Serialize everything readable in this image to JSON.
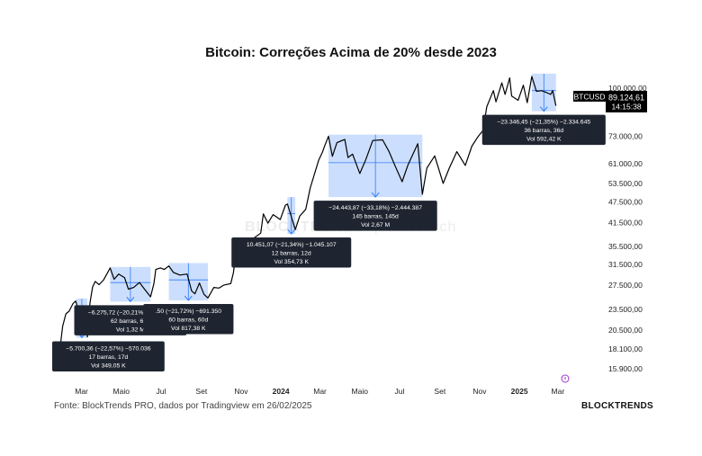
{
  "chart_data": {
    "type": "line",
    "title": "Bitcoin: Correções Acima de 20% desde 2023",
    "symbol": "BTCUSD",
    "last_price": "89.124,61",
    "countdown": "14:15:38",
    "y_scale": "log",
    "ylim": [
      15000,
      118000
    ],
    "y_ticks": [
      "100.000,00",
      "73.000,00",
      "61.000,00",
      "53.500,00",
      "47.500,00",
      "41.500,00",
      "35.500,00",
      "31.500,00",
      "27.500,00",
      "23.500,00",
      "20.500,00",
      "18.100,00",
      "15.900,00"
    ],
    "y_tick_values": [
      100000,
      73000,
      61000,
      53500,
      47500,
      41500,
      35500,
      31500,
      27500,
      23500,
      20500,
      18100,
      15900
    ],
    "x_range": [
      "2023-01-15",
      "2025-03-15"
    ],
    "x_ticks": [
      {
        "label": "Mar",
        "date": "2023-03-01"
      },
      {
        "label": "Maio",
        "date": "2023-05-01"
      },
      {
        "label": "Jul",
        "date": "2023-07-01"
      },
      {
        "label": "Set",
        "date": "2023-09-01"
      },
      {
        "label": "Nov",
        "date": "2023-11-01"
      },
      {
        "label": "2024",
        "date": "2024-01-01"
      },
      {
        "label": "Mar",
        "date": "2024-03-01"
      },
      {
        "label": "Maio",
        "date": "2024-05-01"
      },
      {
        "label": "Jul",
        "date": "2024-07-01"
      },
      {
        "label": "Set",
        "date": "2024-09-01"
      },
      {
        "label": "Nov",
        "date": "2024-11-01"
      },
      {
        "label": "2025",
        "date": "2025-01-01"
      },
      {
        "label": "Mar",
        "date": "2025-03-01"
      }
    ],
    "series": [
      {
        "points": [
          [
            "2023-01-25",
            16900
          ],
          [
            "2023-01-31",
            21000
          ],
          [
            "2023-02-05",
            22800
          ],
          [
            "2023-02-10",
            23200
          ],
          [
            "2023-02-16",
            24400
          ],
          [
            "2023-02-20",
            24800
          ],
          [
            "2023-02-24",
            23400
          ],
          [
            "2023-03-01",
            23800
          ],
          [
            "2023-03-05",
            22400
          ],
          [
            "2023-03-10",
            19600
          ],
          [
            "2023-03-14",
            24500
          ],
          [
            "2023-03-18",
            27200
          ],
          [
            "2023-03-22",
            28200
          ],
          [
            "2023-03-28",
            27600
          ],
          [
            "2023-04-04",
            28500
          ],
          [
            "2023-04-11",
            30100
          ],
          [
            "2023-04-14",
            30800
          ],
          [
            "2023-04-20",
            28600
          ],
          [
            "2023-04-27",
            29600
          ],
          [
            "2023-05-06",
            28900
          ],
          [
            "2023-05-12",
            26800
          ],
          [
            "2023-05-20",
            27100
          ],
          [
            "2023-05-29",
            28000
          ],
          [
            "2023-06-05",
            26900
          ],
          [
            "2023-06-15",
            25500
          ],
          [
            "2023-06-20",
            27800
          ],
          [
            "2023-06-23",
            30500
          ],
          [
            "2023-06-30",
            30800
          ],
          [
            "2023-07-06",
            30500
          ],
          [
            "2023-07-13",
            31200
          ],
          [
            "2023-07-20",
            29900
          ],
          [
            "2023-07-30",
            29400
          ],
          [
            "2023-08-10",
            29600
          ],
          [
            "2023-08-17",
            26500
          ],
          [
            "2023-08-22",
            26000
          ],
          [
            "2023-08-29",
            27900
          ],
          [
            "2023-09-05",
            25900
          ],
          [
            "2023-09-11",
            25300
          ],
          [
            "2023-09-20",
            27100
          ],
          [
            "2023-09-28",
            27000
          ],
          [
            "2023-10-05",
            27500
          ],
          [
            "2023-10-16",
            27800
          ],
          [
            "2023-10-20",
            29800
          ],
          [
            "2023-10-24",
            33800
          ],
          [
            "2023-11-01",
            35400
          ],
          [
            "2023-11-10",
            37200
          ],
          [
            "2023-11-20",
            37400
          ],
          [
            "2023-12-01",
            38700
          ],
          [
            "2023-12-05",
            43900
          ],
          [
            "2023-12-12",
            41300
          ],
          [
            "2023-12-20",
            43700
          ],
          [
            "2023-12-31",
            42300
          ],
          [
            "2024-01-08",
            46500
          ],
          [
            "2024-01-11",
            46800
          ],
          [
            "2024-01-23",
            39600
          ],
          [
            "2024-01-30",
            43300
          ],
          [
            "2024-02-08",
            45200
          ],
          [
            "2024-02-15",
            52000
          ],
          [
            "2024-02-28",
            62400
          ],
          [
            "2024-03-05",
            66000
          ],
          [
            "2024-03-08",
            68500
          ],
          [
            "2024-03-14",
            73000
          ],
          [
            "2024-03-20",
            64000
          ],
          [
            "2024-03-27",
            70000
          ],
          [
            "2024-04-08",
            71500
          ],
          [
            "2024-04-13",
            63500
          ],
          [
            "2024-04-20",
            64900
          ],
          [
            "2024-05-01",
            57200
          ],
          [
            "2024-05-10",
            62500
          ],
          [
            "2024-05-21",
            71000
          ],
          [
            "2024-06-05",
            71300
          ],
          [
            "2024-06-15",
            66000
          ],
          [
            "2024-06-24",
            60200
          ],
          [
            "2024-07-05",
            54200
          ],
          [
            "2024-07-14",
            60500
          ],
          [
            "2024-07-29",
            69500
          ],
          [
            "2024-08-05",
            49900
          ],
          [
            "2024-08-12",
            59300
          ],
          [
            "2024-08-24",
            64200
          ],
          [
            "2024-09-06",
            53600
          ],
          [
            "2024-09-15",
            59000
          ],
          [
            "2024-09-27",
            66000
          ],
          [
            "2024-10-10",
            60300
          ],
          [
            "2024-10-20",
            68400
          ],
          [
            "2024-10-29",
            72600
          ],
          [
            "2024-11-06",
            75800
          ],
          [
            "2024-11-12",
            88600
          ],
          [
            "2024-11-22",
            98500
          ],
          [
            "2024-11-26",
            91500
          ],
          [
            "2024-12-05",
            103600
          ],
          [
            "2024-12-10",
            96000
          ],
          [
            "2024-12-17",
            107000
          ],
          [
            "2024-12-20",
            95000
          ],
          [
            "2024-12-30",
            92400
          ],
          [
            "2025-01-07",
            102000
          ],
          [
            "2025-01-13",
            91000
          ],
          [
            "2025-01-20",
            108000
          ],
          [
            "2025-01-27",
            98000
          ],
          [
            "2025-02-04",
            98400
          ],
          [
            "2025-02-10",
            97500
          ],
          [
            "2025-02-18",
            96000
          ],
          [
            "2025-02-21",
            98500
          ],
          [
            "2025-02-26",
            89124
          ]
        ]
      }
    ],
    "correction_boxes": [
      {
        "from": "2023-02-21",
        "to": "2023-03-10",
        "high": 25200,
        "low": 19500,
        "label_lines": [
          "−5.700,36 (−22,57%) −570.036",
          "17 barras, 17d",
          "Vol 349,05 K"
        ]
      },
      {
        "from": "2023-04-14",
        "to": "2023-06-15",
        "high": 31000,
        "low": 24700,
        "label_lines": [
          "−6.275,72 (−20,21%) −627.572",
          "62 barras, 62d",
          "Vol 1,32 M"
        ]
      },
      {
        "from": "2023-07-13",
        "to": "2023-09-11",
        "high": 31800,
        "low": 24900,
        "label_lines": [
          ".50 (−21,72%) −691.350",
          "60 barras, 60d",
          "Vol 817,38 K"
        ]
      },
      {
        "from": "2024-01-11",
        "to": "2024-01-23",
        "high": 49000,
        "low": 38500,
        "label_lines": [
          "10.451,07 (−21,34%) −1.045.107",
          "12 barras, 12d",
          "Vol 354,73 K"
        ]
      },
      {
        "from": "2024-03-14",
        "to": "2024-08-05",
        "high": 73800,
        "low": 49000,
        "label_lines": [
          "−24.443,87 (−33,18%) −2.444.387",
          "145 barras, 145d",
          "Vol 2,67 M"
        ]
      },
      {
        "from": "2025-01-20",
        "to": "2025-02-26",
        "high": 110000,
        "low": 86000,
        "label_lines": [
          "−23.346,45 (−21,35%) −2.334.645",
          "36 barras, 36d",
          "Vol 592,42 K"
        ]
      }
    ],
    "grid": false,
    "legend": "none"
  },
  "watermark": {
    "brand": "BLOCKTRENDS",
    "sub": "Research"
  },
  "footer": {
    "source": "Fonte: BlockTrends PRO, dados por Tradingview em 26/02/2025",
    "brand": "BLOCKTRENDS"
  },
  "colors": {
    "line": "#000000",
    "box_fill": "#2f7cf6",
    "tooltip_bg": "#1f2530",
    "tooltip_text": "#ffffff",
    "price_tag": "#000000",
    "timezone_icon": "#9b35c9"
  },
  "icons": {
    "timezone": "globe-icon"
  }
}
